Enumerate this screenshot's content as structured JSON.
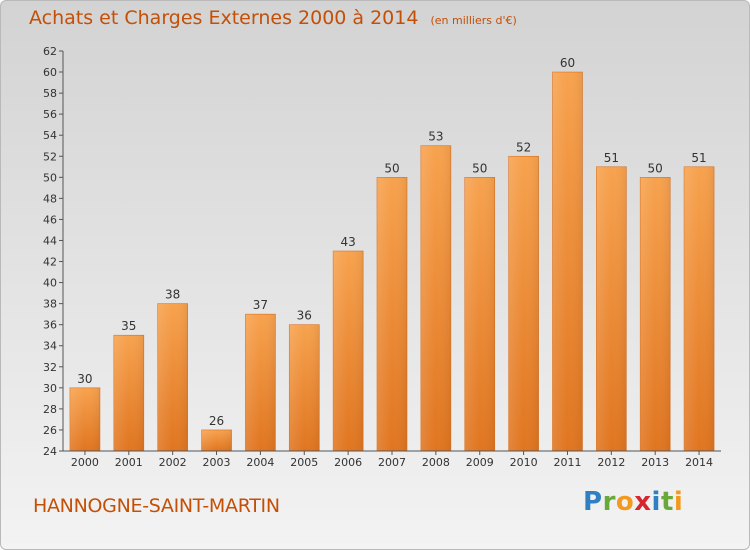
{
  "page": {
    "title": "Achats et Charges Externes 2000 à 2014",
    "unit": "(en milliers d'€)",
    "place": "HANNOGNE-SAINT-MARTIN",
    "logo": "Proxiti"
  },
  "chart_data": {
    "type": "bar",
    "title": "Achats et Charges Externes 2000 à 2014",
    "subtitle": "(en milliers d'€)",
    "xlabel": "",
    "ylabel": "",
    "categories": [
      "2000",
      "2001",
      "2002",
      "2003",
      "2004",
      "2005",
      "2006",
      "2007",
      "2008",
      "2009",
      "2010",
      "2011",
      "2012",
      "2013",
      "2014"
    ],
    "values": [
      30,
      35,
      38,
      26,
      37,
      36,
      43,
      50,
      53,
      50,
      52,
      60,
      51,
      50,
      51
    ],
    "ylim": [
      24,
      62
    ],
    "ytick_step": 2,
    "grid": false,
    "bar_color": "#f08a2e",
    "bar_color_light": "#f7a04e",
    "bar_color_dark": "#dd7420"
  }
}
